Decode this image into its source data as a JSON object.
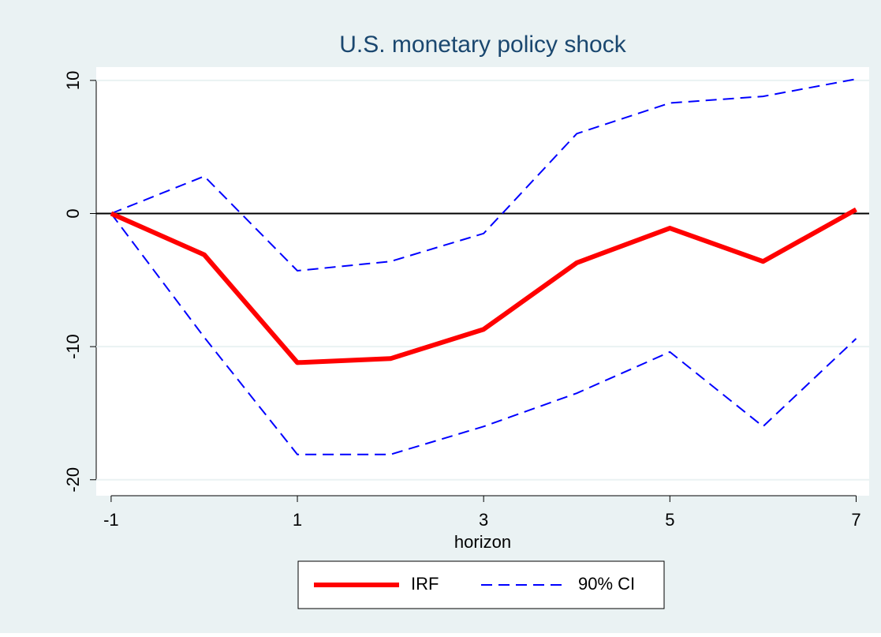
{
  "chart_data": {
    "type": "line",
    "title": "U.S. monetary policy shock",
    "x_label": "horizon",
    "x": [
      -1,
      0,
      1,
      2,
      3,
      4,
      5,
      6,
      7
    ],
    "series": [
      {
        "name": "IRF",
        "color": "#ff0000",
        "style": "solid",
        "values": [
          0,
          -3.1,
          -11.2,
          -10.9,
          -8.7,
          -3.7,
          -1.1,
          -3.6,
          0.3
        ]
      },
      {
        "name": "90% CI",
        "color": "#0000ff",
        "style": "dashed",
        "values": [
          0,
          2.8,
          -4.3,
          -3.6,
          -1.5,
          6.0,
          8.3,
          8.8,
          10.1
        ],
        "lower": [
          0,
          -9.3,
          -18.1,
          -18.1,
          -16.0,
          -13.5,
          -10.4,
          -16.0,
          -9.4
        ]
      }
    ],
    "xlim": [
      -1.16,
      7.14
    ],
    "xticks": [
      -1,
      1,
      3,
      5,
      7
    ],
    "ylim": [
      -21.2,
      11.0
    ],
    "yticks": [
      -20,
      -10,
      0,
      10
    ],
    "reference_line": 0,
    "grid": true,
    "legend_position": "bottom"
  }
}
